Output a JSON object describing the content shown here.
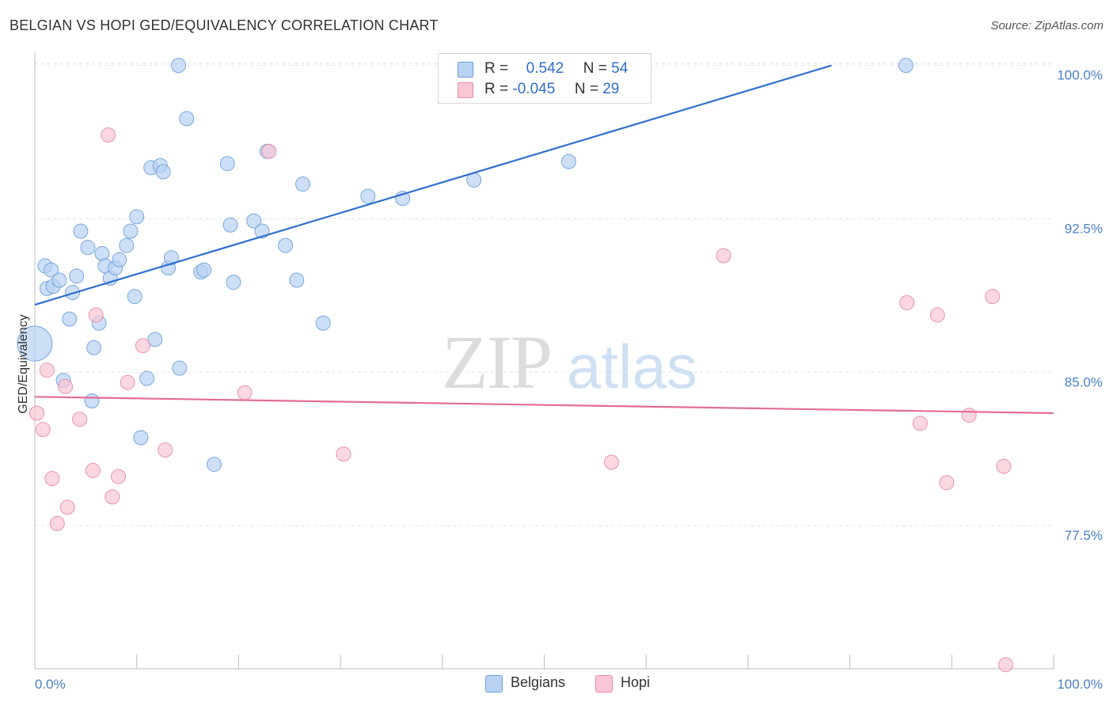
{
  "header": {
    "title": "BELGIAN VS HOPI GED/EQUIVALENCY CORRELATION CHART",
    "source": "Source: ZipAtlas.com"
  },
  "legend": {
    "rows": [
      {
        "r_label": "R =",
        "r_value": "0.542",
        "n_label": "N =",
        "n_value": "54"
      },
      {
        "r_label": "R =",
        "r_value": "-0.045",
        "n_label": "N =",
        "n_value": "29"
      }
    ]
  },
  "bottom_legend": {
    "belgians": "Belgians",
    "hopi": "Hopi"
  },
  "watermark": {
    "zip": "ZIP",
    "atlas": "atlas"
  },
  "colors": {
    "belgians_fill": "#b8d2f2",
    "belgians_stroke": "#6c9fdc",
    "belgians_line": "#2f6fcf",
    "hopi_fill": "#f9c6d5",
    "hopi_stroke": "#e68aa8",
    "hopi_line": "#e36c97",
    "tick_text": "#4a80c8",
    "grid": "#e2e2e2"
  },
  "chart_data": {
    "type": "scatter",
    "title": "BELGIAN VS HOPI GED/EQUIVALENCY CORRELATION CHART",
    "xlabel": "",
    "ylabel": "GED/Equivalency",
    "xlim": [
      0,
      100
    ],
    "ylim": [
      70.5,
      100.8
    ],
    "x_tick_labels": [
      "0.0%",
      "100.0%"
    ],
    "y_ticks": [
      77.5,
      85.0,
      92.5,
      100.0
    ],
    "y_tick_labels": [
      "77.5%",
      "85.0%",
      "92.5%",
      "100.0%"
    ],
    "grid": true,
    "legend_position": "top-center",
    "series": [
      {
        "name": "Belgians",
        "r": 0.542,
        "n": 54,
        "trend": {
          "x": [
            0,
            78.2
          ],
          "y": [
            88.3,
            100.0
          ]
        },
        "points": [
          [
            0.0,
            86.4,
            3
          ],
          [
            1.0,
            90.2,
            1
          ],
          [
            1.2,
            89.1,
            1
          ],
          [
            1.6,
            90.0,
            1
          ],
          [
            1.8,
            89.2,
            1
          ],
          [
            2.4,
            89.5,
            1
          ],
          [
            2.8,
            84.6,
            1
          ],
          [
            3.4,
            87.6,
            1
          ],
          [
            3.7,
            88.9,
            1
          ],
          [
            4.1,
            89.7,
            1
          ],
          [
            4.5,
            91.9,
            1
          ],
          [
            5.2,
            91.1,
            1
          ],
          [
            5.6,
            83.6,
            1
          ],
          [
            5.8,
            86.2,
            1
          ],
          [
            6.3,
            87.4,
            1
          ],
          [
            6.6,
            90.8,
            1
          ],
          [
            6.9,
            90.2,
            1
          ],
          [
            7.4,
            89.6,
            1
          ],
          [
            7.9,
            90.1,
            1
          ],
          [
            8.3,
            90.5,
            1
          ],
          [
            9.0,
            91.2,
            1
          ],
          [
            9.4,
            91.9,
            1
          ],
          [
            9.8,
            88.7,
            1
          ],
          [
            10.0,
            92.6,
            1
          ],
          [
            10.4,
            81.8,
            1
          ],
          [
            11.0,
            84.7,
            1
          ],
          [
            11.4,
            95.0,
            1
          ],
          [
            11.8,
            86.6,
            1
          ],
          [
            12.3,
            95.1,
            1
          ],
          [
            12.6,
            94.8,
            1
          ],
          [
            13.1,
            90.1,
            1
          ],
          [
            13.4,
            90.6,
            1
          ],
          [
            14.2,
            85.2,
            1
          ],
          [
            14.1,
            100.0,
            1
          ],
          [
            14.9,
            97.4,
            1
          ],
          [
            16.3,
            89.9,
            1
          ],
          [
            16.6,
            90.0,
            1
          ],
          [
            17.6,
            80.5,
            1
          ],
          [
            18.9,
            95.2,
            1
          ],
          [
            19.2,
            92.2,
            1
          ],
          [
            19.5,
            89.4,
            1
          ],
          [
            21.5,
            92.4,
            1
          ],
          [
            22.3,
            91.9,
            1
          ],
          [
            22.8,
            95.8,
            1
          ],
          [
            24.6,
            91.2,
            1
          ],
          [
            25.7,
            89.5,
            1
          ],
          [
            26.3,
            94.2,
            1
          ],
          [
            28.3,
            87.4,
            1
          ],
          [
            32.7,
            93.6,
            1
          ],
          [
            36.1,
            93.5,
            1
          ],
          [
            43.1,
            94.4,
            1
          ],
          [
            49.1,
            100.0,
            1
          ],
          [
            52.4,
            95.3,
            1
          ],
          [
            85.5,
            100.0,
            1
          ]
        ]
      },
      {
        "name": "Hopi",
        "r": -0.045,
        "n": 29,
        "trend": {
          "x": [
            0,
            100
          ],
          "y": [
            83.8,
            83.0
          ]
        },
        "points": [
          [
            0.2,
            83.0,
            1
          ],
          [
            0.8,
            82.2,
            1
          ],
          [
            1.2,
            85.1,
            1
          ],
          [
            1.7,
            79.8,
            1
          ],
          [
            2.2,
            77.6,
            1
          ],
          [
            3.0,
            84.3,
            1
          ],
          [
            3.2,
            78.4,
            1
          ],
          [
            4.4,
            82.7,
            1
          ],
          [
            5.7,
            80.2,
            1
          ],
          [
            6.0,
            87.8,
            1
          ],
          [
            7.2,
            96.6,
            1
          ],
          [
            7.6,
            78.9,
            1
          ],
          [
            8.2,
            79.9,
            1
          ],
          [
            9.1,
            84.5,
            1
          ],
          [
            10.6,
            86.3,
            1
          ],
          [
            12.8,
            81.2,
            1
          ],
          [
            20.6,
            84.0,
            1
          ],
          [
            23.0,
            95.8,
            1
          ],
          [
            30.3,
            81.0,
            1
          ],
          [
            56.6,
            80.6,
            1
          ],
          [
            67.6,
            90.7,
            1
          ],
          [
            85.6,
            88.4,
            1
          ],
          [
            86.9,
            82.5,
            1
          ],
          [
            88.6,
            87.8,
            1
          ],
          [
            89.5,
            79.6,
            1
          ],
          [
            91.7,
            82.9,
            1
          ],
          [
            94.0,
            88.7,
            1
          ],
          [
            95.1,
            80.4,
            1
          ],
          [
            95.3,
            70.7,
            1
          ]
        ]
      }
    ]
  }
}
